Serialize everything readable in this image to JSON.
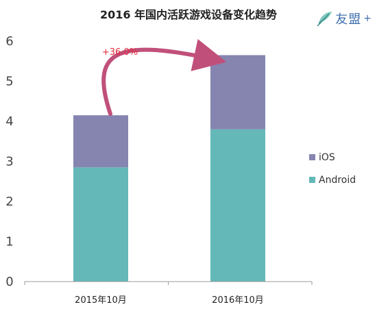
{
  "logo": {
    "text": "友盟",
    "plus": "+"
  },
  "chart_data": {
    "type": "bar",
    "stacked": true,
    "title": "2016 年国内活跃游戏设备变化趋势",
    "categories": [
      "2015年10月",
      "2016年10月"
    ],
    "series": [
      {
        "name": "Android",
        "values": [
          2.85,
          3.8
        ],
        "color": "#64b8b8"
      },
      {
        "name": "iOS",
        "values": [
          1.3,
          1.85
        ],
        "color": "#8585b0"
      }
    ],
    "totals": [
      4.15,
      5.65
    ],
    "ylim": [
      0,
      6
    ],
    "yticks": [
      0,
      1,
      2,
      3,
      4,
      5,
      6
    ],
    "grid": false,
    "legend": {
      "placement": "right",
      "order": [
        "iOS",
        "Android"
      ]
    },
    "annotation": {
      "text": "+36.0%",
      "color": "#e22a3d",
      "arrow_color": "#c0507a"
    }
  }
}
